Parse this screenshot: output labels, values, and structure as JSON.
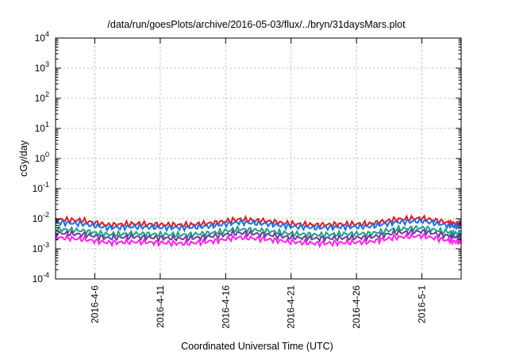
{
  "chart_data": {
    "type": "line",
    "title": "/data/run/goesPlots/archive/2016-05-03/flux/../bryn/31daysMars.plot",
    "xlabel": "Coordinated Universal Time (UTC)",
    "ylabel": "cGy/day",
    "yscale": "log",
    "ylim": [
      0.0001,
      10000
    ],
    "y_ticks": [
      {
        "base": "10",
        "exp": "-4",
        "value": 0.0001
      },
      {
        "base": "10",
        "exp": "-3",
        "value": 0.001
      },
      {
        "base": "10",
        "exp": "-2",
        "value": 0.01
      },
      {
        "base": "10",
        "exp": "-1",
        "value": 0.1
      },
      {
        "base": "10",
        "exp": "0",
        "value": 1
      },
      {
        "base": "10",
        "exp": "1",
        "value": 10
      },
      {
        "base": "10",
        "exp": "2",
        "value": 100
      },
      {
        "base": "10",
        "exp": "3",
        "value": 1000
      },
      {
        "base": "10",
        "exp": "4",
        "value": 10000
      }
    ],
    "xlim": [
      "2016-04-03",
      "2016-05-04"
    ],
    "x_ticks": [
      "2016-4-6",
      "2016-4-11",
      "2016-4-16",
      "2016-4-21",
      "2016-4-26",
      "2016-5-1"
    ],
    "grid": true,
    "x": [
      "2016-04-03",
      "2016-04-05",
      "2016-04-07",
      "2016-04-09",
      "2016-04-11",
      "2016-04-13",
      "2016-04-15",
      "2016-04-17",
      "2016-04-19",
      "2016-04-21",
      "2016-04-23",
      "2016-04-25",
      "2016-04-27",
      "2016-04-29",
      "2016-05-01",
      "2016-05-03",
      "2016-05-04"
    ],
    "series": [
      {
        "color": "#e41a1c",
        "values": [
          0.0095,
          0.0088,
          0.0062,
          0.0068,
          0.0064,
          0.0062,
          0.0072,
          0.0095,
          0.0085,
          0.0068,
          0.0062,
          0.0066,
          0.0068,
          0.0095,
          0.0105,
          0.0075,
          0.0065
        ]
      },
      {
        "color": "#1e6fe0",
        "values": [
          0.0075,
          0.0068,
          0.005,
          0.0054,
          0.0051,
          0.005,
          0.0058,
          0.0076,
          0.0068,
          0.0055,
          0.005,
          0.0053,
          0.0055,
          0.0076,
          0.0084,
          0.006,
          0.0052
        ]
      },
      {
        "color": "#1ea08a",
        "values": [
          0.0045,
          0.004,
          0.003,
          0.0032,
          0.003,
          0.0029,
          0.0034,
          0.0045,
          0.004,
          0.0032,
          0.0029,
          0.0031,
          0.0032,
          0.0045,
          0.005,
          0.0036,
          0.0031
        ]
      },
      {
        "color": "#6a3d9a",
        "values": [
          0.0034,
          0.003,
          0.0023,
          0.0025,
          0.0023,
          0.0022,
          0.0026,
          0.0034,
          0.003,
          0.0024,
          0.0022,
          0.0023,
          0.0024,
          0.0034,
          0.0038,
          0.0027,
          0.0023
        ]
      },
      {
        "color": "#ff22ee",
        "values": [
          0.0024,
          0.0021,
          0.0016,
          0.0017,
          0.0016,
          0.0015,
          0.0018,
          0.0024,
          0.0021,
          0.0017,
          0.0015,
          0.0016,
          0.0017,
          0.0024,
          0.0027,
          0.0019,
          0.0016
        ]
      }
    ]
  }
}
